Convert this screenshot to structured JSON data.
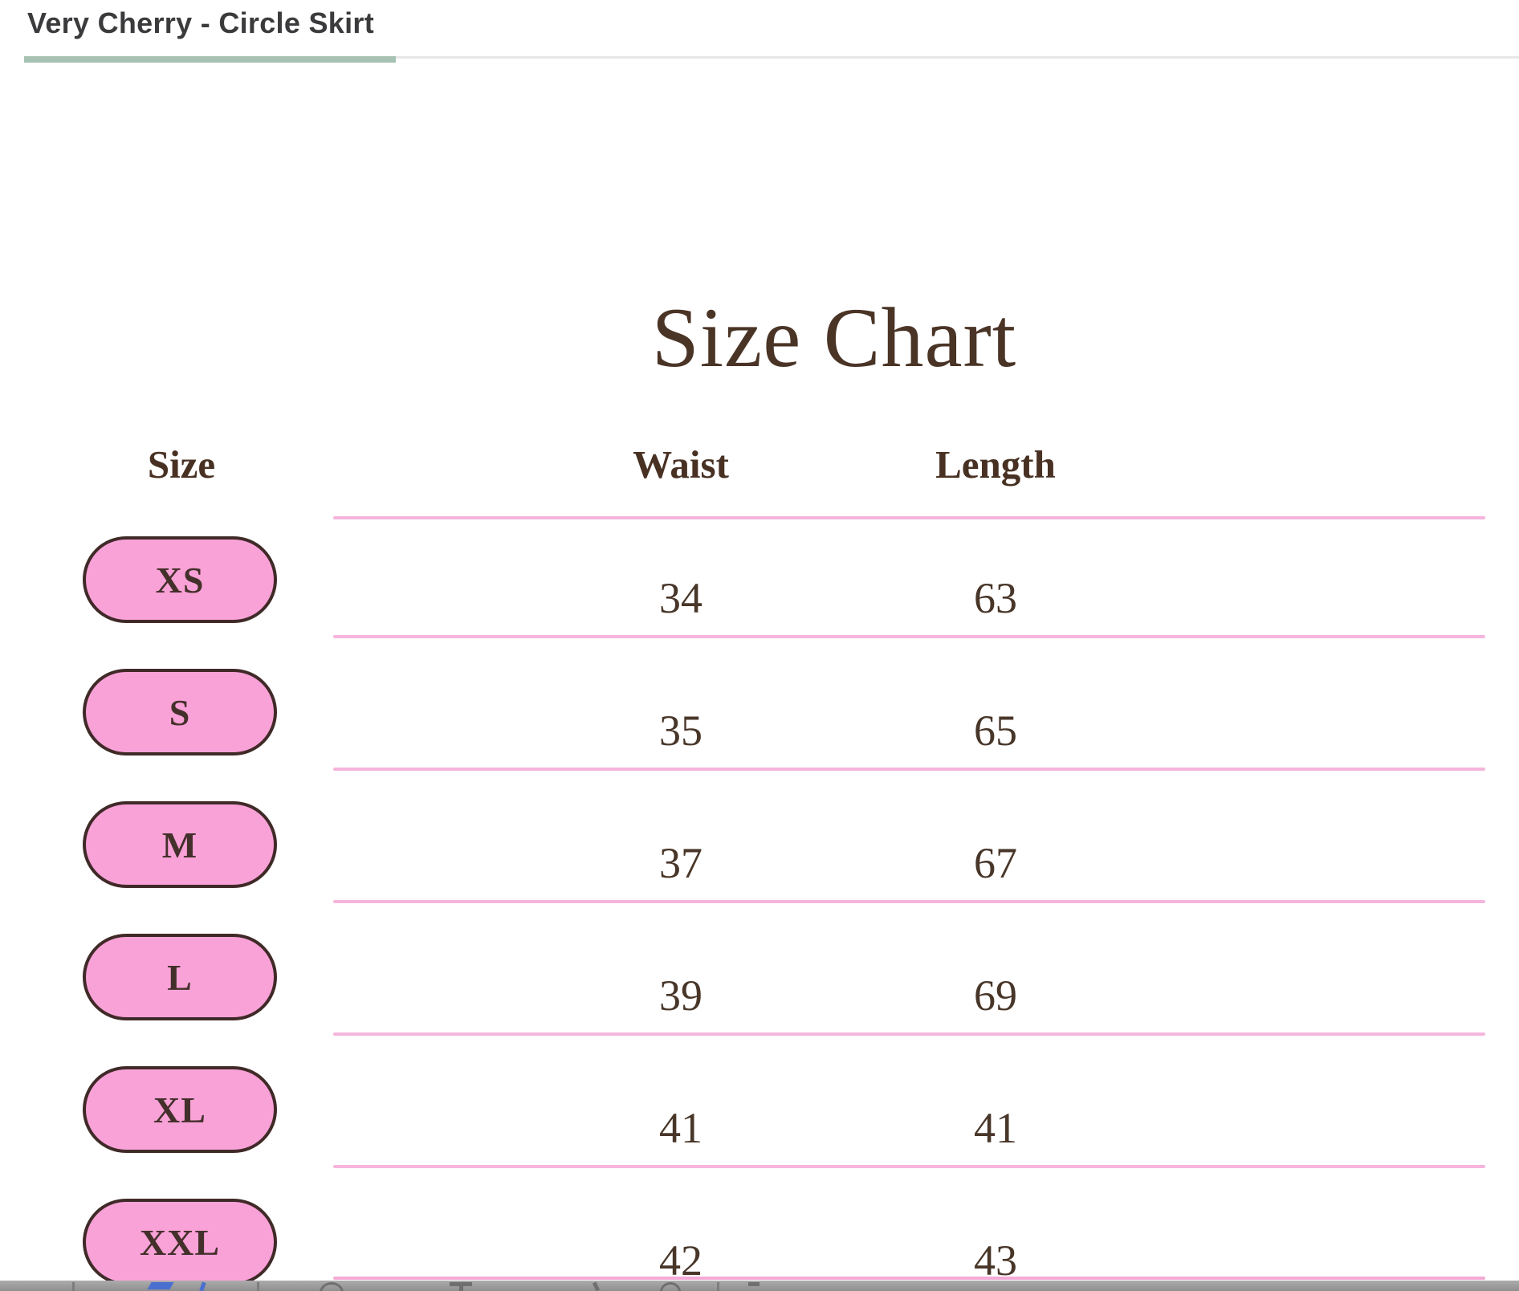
{
  "page": {
    "title": "Very Cherry - Circle Skirt"
  },
  "size_chart": {
    "heading": "Size Chart",
    "columns": {
      "size": "Size",
      "waist": "Waist",
      "length": "Length"
    },
    "rows": [
      {
        "size": "XS",
        "waist": "34",
        "length": "63"
      },
      {
        "size": "S",
        "waist": "35",
        "length": "65"
      },
      {
        "size": "M",
        "waist": "37",
        "length": "67"
      },
      {
        "size": "L",
        "waist": "39",
        "length": "69"
      },
      {
        "size": "XL",
        "waist": "41",
        "length": "41"
      },
      {
        "size": "XXL",
        "waist": "42",
        "length": "43"
      }
    ],
    "colors": {
      "heading_text": "#4a3426",
      "pill_fill": "#f9a2d8",
      "pill_border": "#402a28",
      "divider_pink": "#f5b5dd",
      "accent_green": "#a7c2b2"
    }
  }
}
